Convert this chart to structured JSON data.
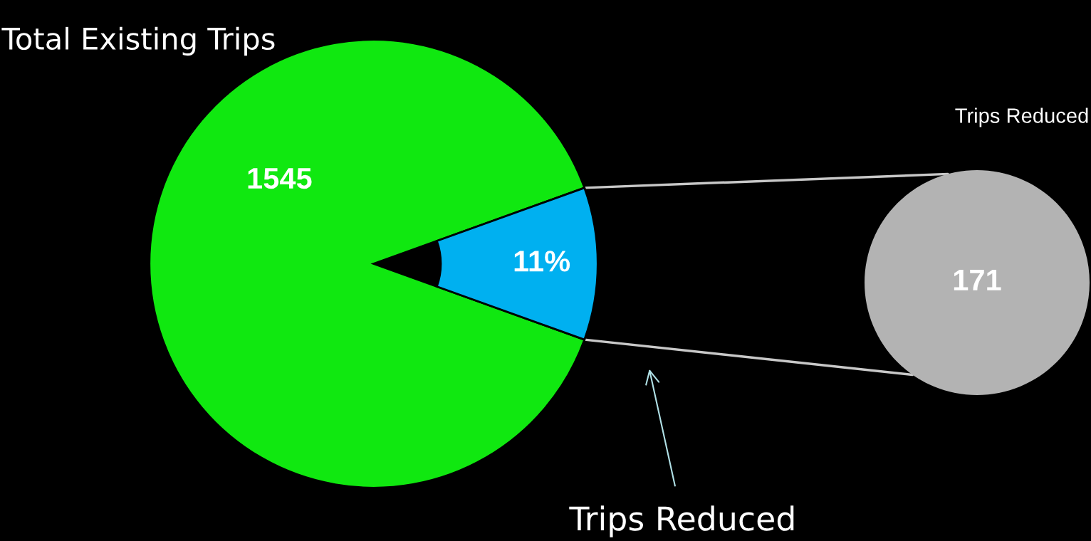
{
  "chart_data": [
    {
      "type": "pie",
      "title": "Total Existing Trips",
      "categories": [
        null,
        null
      ],
      "values": [
        89,
        11
      ],
      "colors": [
        "#10e810",
        "#00b0f0"
      ],
      "value_labels": [
        null,
        "11%"
      ],
      "annotations": [
        "1545",
        "Trips Reduced"
      ]
    },
    {
      "type": "pie",
      "title": "Trips Reduced",
      "categories": [
        null
      ],
      "values": [
        171
      ],
      "colors": [
        "#b3b3b3"
      ],
      "data_labels": true
    }
  ]
}
